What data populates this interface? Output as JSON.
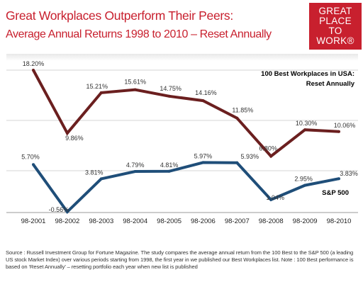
{
  "header": {
    "title_line1": "Great Workplaces Outperform Their Peers:",
    "title_line2": "Average Annual Returns 1998 to 2010 – Reset Annually",
    "logo_lines": [
      "GREAT",
      "PLACE",
      "TO",
      "WORK®"
    ]
  },
  "colors": {
    "title": "#c8202e",
    "series_best": "#6b1f1f",
    "series_sp": "#1f4e79",
    "grid": "#d4d4d4"
  },
  "chart_data": {
    "type": "line",
    "title": "Average Annual Returns 1998 to 2010 – Reset Annually",
    "xlabel": "",
    "ylabel": "",
    "categories": [
      "98-2001",
      "98-2002",
      "98-2003",
      "98-2004",
      "98-2005",
      "98-2006",
      "98-2007",
      "98-2008",
      "98-2009",
      "98-2010"
    ],
    "series": [
      {
        "name": "100 Best Workplaces in USA: Reset Annually",
        "values": [
          18.2,
          9.86,
          15.21,
          15.61,
          14.75,
          14.16,
          11.85,
          6.8,
          10.3,
          10.06
        ],
        "labels": [
          "18.20%",
          "9.86%",
          "15.21%",
          "15.61%",
          "14.75%",
          "14.16%",
          "11.85%",
          "6.80%",
          "10.30%",
          "10.06%"
        ],
        "color": "#6b1f1f"
      },
      {
        "name": "S&P 500",
        "values": [
          5.7,
          -0.56,
          3.81,
          4.79,
          4.81,
          5.97,
          5.93,
          1.04,
          2.95,
          3.83
        ],
        "labels": [
          "5.70%",
          "-0.56%",
          "3.81%",
          "4.79%",
          "4.81%",
          "5.97%",
          "5.93%",
          "1.04%",
          "2.95%",
          "3.83%"
        ],
        "color": "#1f4e79"
      }
    ],
    "legend": {
      "best_line1": "100 Best Workplaces in USA:",
      "best_line2": "Reset Annually",
      "sp": "S&P 500",
      "placement": "right"
    },
    "ylim": [
      -0.56,
      18.2
    ],
    "grid": true
  },
  "source_note": "Source : Russell Investment Group for Fortune Magazine. The study compares the average annual return from the 100 Best to the S&P 500 (a leading US stock Market Index) over various periods starting from 1998, the first year in we published our Best Workplaces list. Note : 100 Best performance is based on ‘Reset Annually’ – resetting portfolio each year when new list is published"
}
